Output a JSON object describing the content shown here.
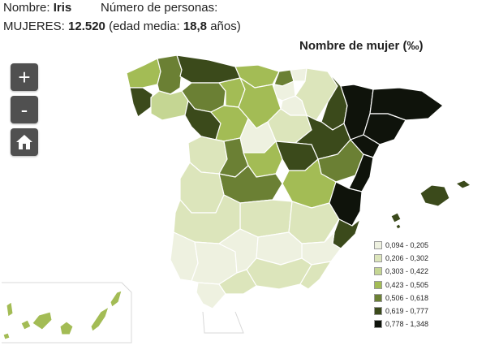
{
  "header": {
    "nombre_label": "Nombre:",
    "nombre_value": "Iris",
    "personas_label": "Número de personas:",
    "mujeres_label": "MUJERES:",
    "mujeres_value": "12.520",
    "edad_prefix": "(edad media:",
    "edad_value": "18,8",
    "edad_suffix": "años)"
  },
  "map": {
    "title": "Nombre de mujer (‰)"
  },
  "controls": {
    "zoom_in": "+",
    "zoom_out": "-",
    "home_icon": "home-icon"
  },
  "legend": {
    "items": [
      {
        "label": "0,094 - 0,205",
        "color": "#eef1e0"
      },
      {
        "label": "0,206 - 0,302",
        "color": "#dce5bb"
      },
      {
        "label": "0,303 - 0,422",
        "color": "#c5d693"
      },
      {
        "label": "0,423 - 0,505",
        "color": "#a3bc55"
      },
      {
        "label": "0,506 - 0,618",
        "color": "#6b8034"
      },
      {
        "label": "0,619 - 0,777",
        "color": "#3b4a1b"
      },
      {
        "label": "0,778 - 1,348",
        "color": "#0f130b"
      }
    ]
  }
}
